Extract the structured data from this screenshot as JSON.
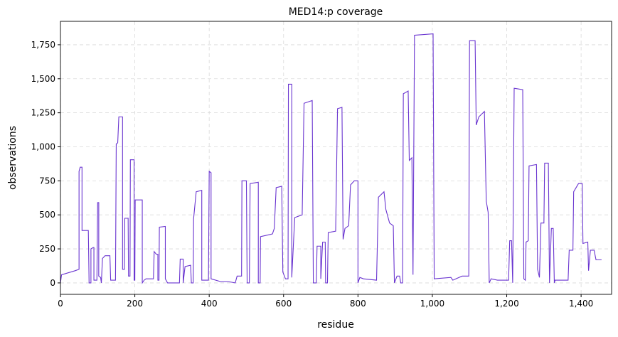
{
  "chart_data": {
    "type": "line",
    "title": "MED14:p coverage",
    "x_label": "residue",
    "y_label": "observations",
    "color": "#6a35d0",
    "grid": true,
    "xlim": [
      0,
      1482
    ],
    "ylim": [
      -84,
      1922
    ],
    "xticks": [
      0,
      200,
      400,
      600,
      800,
      {
        "value": 1000,
        "label": "1,000"
      },
      {
        "value": 1200,
        "label": "1,200"
      },
      {
        "value": 1400,
        "label": "1,400"
      }
    ],
    "yticks": [
      0,
      250,
      500,
      750,
      {
        "value": 1000,
        "label": "1,000"
      },
      {
        "value": 1250,
        "label": "1,250"
      },
      {
        "value": 1500,
        "label": "1,500"
      },
      {
        "value": 1750,
        "label": "1,750"
      }
    ],
    "x": [
      0,
      3,
      40,
      50,
      50,
      53,
      58,
      58,
      75,
      77,
      82,
      82,
      88,
      90,
      90,
      98,
      100,
      103,
      103,
      108,
      110,
      113,
      120,
      133,
      135,
      148,
      150,
      154,
      157,
      167,
      167,
      172,
      173,
      182,
      183,
      187,
      188,
      198,
      198,
      200,
      201,
      220,
      220,
      225,
      230,
      250,
      252,
      258,
      262,
      262,
      265,
      266,
      282,
      282,
      288,
      320,
      322,
      330,
      330,
      335,
      350,
      352,
      357,
      358,
      365,
      380,
      380,
      398,
      400,
      405,
      405,
      430,
      450,
      470,
      475,
      487,
      488,
      500,
      502,
      508,
      510,
      532,
      532,
      537,
      538,
      570,
      575,
      580,
      595,
      598,
      605,
      612,
      613,
      622,
      622,
      630,
      650,
      655,
      677,
      680,
      688,
      690,
      700,
      700,
      705,
      712,
      713,
      718,
      720,
      740,
      745,
      757,
      760,
      765,
      775,
      780,
      790,
      800,
      800,
      805,
      815,
      850,
      855,
      870,
      875,
      885,
      895,
      898,
      905,
      912,
      915,
      920,
      922,
      935,
      938,
      945,
      948,
      952,
      1002,
      1005,
      1050,
      1055,
      1080,
      1098,
      1100,
      1115,
      1118,
      1125,
      1140,
      1145,
      1150,
      1153,
      1158,
      1175,
      1205,
      1208,
      1213,
      1216,
      1220,
      1243,
      1246,
      1250,
      1252,
      1258,
      1260,
      1280,
      1283,
      1288,
      1292,
      1300,
      1302,
      1312,
      1315,
      1320,
      1325,
      1328,
      1330,
      1365,
      1368,
      1378,
      1380,
      1393,
      1403,
      1405,
      1418,
      1420,
      1423,
      1425,
      1435,
      1440,
      1455
    ],
    "values": [
      0,
      60,
      90,
      100,
      820,
      850,
      850,
      385,
      385,
      0,
      0,
      250,
      260,
      260,
      20,
      20,
      590,
      590,
      50,
      40,
      0,
      180,
      200,
      200,
      20,
      20,
      1020,
      1030,
      1220,
      1220,
      100,
      100,
      475,
      475,
      50,
      50,
      905,
      905,
      20,
      20,
      610,
      610,
      0,
      20,
      30,
      30,
      230,
      210,
      210,
      20,
      20,
      410,
      415,
      30,
      0,
      0,
      175,
      175,
      0,
      120,
      130,
      0,
      0,
      470,
      670,
      680,
      20,
      20,
      820,
      810,
      30,
      10,
      10,
      0,
      50,
      50,
      750,
      750,
      0,
      0,
      730,
      740,
      0,
      0,
      340,
      360,
      400,
      700,
      710,
      80,
      30,
      30,
      1460,
      1460,
      40,
      480,
      500,
      1320,
      1340,
      0,
      0,
      270,
      270,
      30,
      300,
      300,
      0,
      0,
      370,
      380,
      1280,
      1290,
      320,
      400,
      420,
      720,
      750,
      750,
      0,
      40,
      30,
      20,
      630,
      670,
      540,
      440,
      420,
      0,
      50,
      50,
      0,
      0,
      1390,
      1410,
      900,
      920,
      60,
      1820,
      1830,
      30,
      40,
      20,
      50,
      50,
      1780,
      1780,
      1160,
      1220,
      1260,
      600,
      520,
      0,
      30,
      20,
      20,
      310,
      310,
      0,
      1430,
      1420,
      30,
      20,
      300,
      310,
      860,
      870,
      100,
      40,
      440,
      440,
      880,
      880,
      0,
      400,
      400,
      0,
      20,
      20,
      240,
      240,
      670,
      730,
      730,
      290,
      300,
      90,
      180,
      240,
      240,
      170,
      170
    ]
  }
}
